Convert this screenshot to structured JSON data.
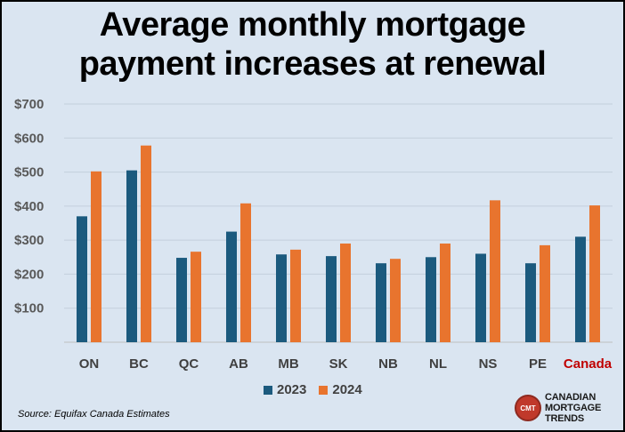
{
  "chart_data": {
    "type": "bar",
    "title_lines": [
      "Average monthly mortgage",
      "payment increases at renewal"
    ],
    "categories": [
      "ON",
      "BC",
      "QC",
      "AB",
      "MB",
      "SK",
      "NB",
      "NL",
      "NS",
      "PE",
      "Canada"
    ],
    "highlight_category": "Canada",
    "series": [
      {
        "name": "2023",
        "color": "#1b5a7e",
        "values": [
          370,
          505,
          248,
          325,
          258,
          253,
          232,
          250,
          260,
          232,
          310
        ]
      },
      {
        "name": "2024",
        "color": "#e8742e",
        "values": [
          502,
          578,
          266,
          408,
          272,
          290,
          245,
          290,
          417,
          285,
          402
        ]
      }
    ],
    "yticks": [
      "$100",
      "$200",
      "$300",
      "$400",
      "$500",
      "$600",
      "$700"
    ],
    "ylim": [
      0,
      700
    ],
    "grid": true,
    "legend_position": "bottom",
    "source": "Source: Equifax Canada  Estimates",
    "highlight_color": "#c00000"
  },
  "logo": {
    "mark": "CMT",
    "lines": [
      "CANADIAN",
      "MORTGAGE",
      "TRENDS"
    ]
  }
}
